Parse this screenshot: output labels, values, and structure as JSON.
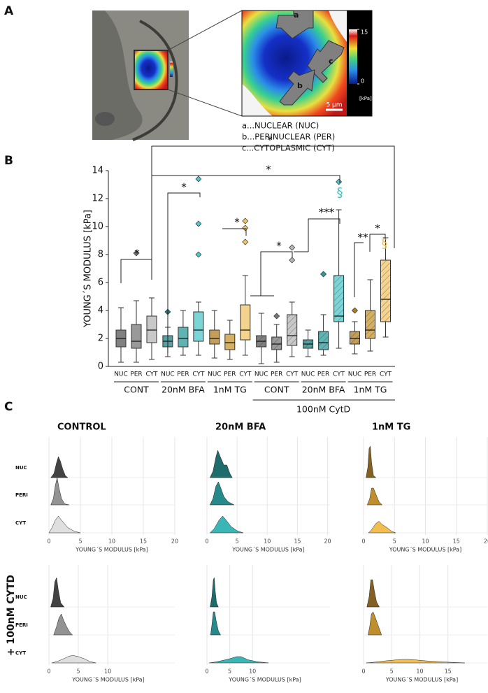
{
  "panel_labels": [
    "A",
    "B",
    "C"
  ],
  "panel_a": {
    "arrows": [
      "a",
      "b",
      "c"
    ],
    "colorbar": {
      "ticks": [
        15,
        0
      ],
      "unit": "[kPa]"
    },
    "scale_bar": "5 µm",
    "legend": [
      "a...NUCLEAR (NUC)",
      "b...PERINUCLEAR (PER)",
      "c...CYTOPLASMIC (CYT)"
    ]
  },
  "row_label": "+ 100nM CYTD",
  "chart_data": [
    {
      "type": "box",
      "ylabel": "YOUNG´S MODULUS [kPa]",
      "ylim": [
        0,
        14
      ],
      "yticks": [
        0,
        2,
        4,
        6,
        8,
        10,
        12,
        14
      ],
      "categories": [
        "NUC",
        "PER",
        "CYT",
        "NUC",
        "PER",
        "CYT",
        "NUC",
        "PER",
        "CYT",
        "NUC",
        "PER",
        "CYT",
        "NUC",
        "PER",
        "CYT",
        "NUC",
        "PER",
        "CYT"
      ],
      "groups": [
        "CONT",
        "20nM BFA",
        "1nM TG",
        "CONT",
        "20nM BFA",
        "1nM TG"
      ],
      "supergroup": "100nM CytD",
      "boxes": [
        {
          "min": 0.3,
          "q1": 1.4,
          "median": 2.0,
          "q3": 2.6,
          "max": 4.2,
          "outliers": [],
          "color": "#555555",
          "hatched": false
        },
        {
          "min": 0.3,
          "q1": 1.3,
          "median": 1.8,
          "q3": 3.0,
          "max": 4.7,
          "outliers": [
            8.1
          ],
          "color": "#777777",
          "hatched": false
        },
        {
          "min": 0.5,
          "q1": 1.7,
          "median": 2.6,
          "q3": 3.6,
          "max": 4.9,
          "outliers": [],
          "color": "#b5b5b5",
          "hatched": false
        },
        {
          "min": 0.7,
          "q1": 1.4,
          "median": 1.8,
          "q3": 2.2,
          "max": 2.8,
          "outliers": [
            3.9
          ],
          "color": "#1f7f80",
          "hatched": false
        },
        {
          "min": 0.8,
          "q1": 1.4,
          "median": 2.0,
          "q3": 2.8,
          "max": 4.0,
          "outliers": [],
          "color": "#2a9a9a",
          "hatched": false
        },
        {
          "min": 0.8,
          "q1": 1.8,
          "median": 2.6,
          "q3": 3.9,
          "max": 4.6,
          "outliers": [
            13.4,
            10.2,
            8.0
          ],
          "color": "#4fc6c7",
          "hatched": false
        },
        {
          "min": 0.6,
          "q1": 1.6,
          "median": 2.0,
          "q3": 2.6,
          "max": 4.0,
          "outliers": [],
          "color": "#b07d20",
          "hatched": false
        },
        {
          "min": 0.5,
          "q1": 1.2,
          "median": 1.7,
          "q3": 2.3,
          "max": 3.3,
          "outliers": [],
          "color": "#c8962e",
          "hatched": false
        },
        {
          "min": 0.8,
          "q1": 1.9,
          "median": 2.6,
          "q3": 4.4,
          "max": 6.5,
          "outliers": [
            10.4,
            9.9,
            8.9
          ],
          "color": "#f0c46a",
          "hatched": false
        },
        {
          "min": 0.2,
          "q1": 1.4,
          "median": 1.8,
          "q3": 2.2,
          "max": 3.8,
          "outliers": [],
          "color": "#555555",
          "hatched": true
        },
        {
          "min": 0.3,
          "q1": 1.2,
          "median": 1.6,
          "q3": 2.1,
          "max": 3.0,
          "outliers": [
            3.6
          ],
          "color": "#777777",
          "hatched": true
        },
        {
          "min": 0.7,
          "q1": 1.5,
          "median": 2.2,
          "q3": 3.7,
          "max": 4.6,
          "outliers": [
            8.5,
            7.6
          ],
          "color": "#b5b5b5",
          "hatched": true
        },
        {
          "min": 0.7,
          "q1": 1.3,
          "median": 1.6,
          "q3": 1.9,
          "max": 2.6,
          "outliers": [],
          "color": "#1f7f80",
          "hatched": true
        },
        {
          "min": 0.8,
          "q1": 1.2,
          "median": 1.7,
          "q3": 2.5,
          "max": 3.7,
          "outliers": [
            6.6
          ],
          "color": "#2a9a9a",
          "hatched": true
        },
        {
          "min": 1.3,
          "q1": 3.2,
          "median": 3.6,
          "q3": 6.5,
          "max": 11.2,
          "outliers": [
            13.2
          ],
          "color": "#4fc6c7",
          "hatched": true
        },
        {
          "min": 0.9,
          "q1": 1.6,
          "median": 2.0,
          "q3": 2.5,
          "max": 3.2,
          "outliers": [
            4.0
          ],
          "color": "#b07d20",
          "hatched": true
        },
        {
          "min": 1.1,
          "q1": 2.0,
          "median": 2.6,
          "q3": 4.0,
          "max": 6.2,
          "outliers": [],
          "color": "#c8962e",
          "hatched": true
        },
        {
          "min": 2.1,
          "q1": 3.2,
          "median": 4.8,
          "q3": 7.6,
          "max": 9.2,
          "outliers": [],
          "color": "#f0c46a",
          "hatched": true
        }
      ],
      "annotations": [
        {
          "text": "*"
        },
        {
          "text": "*"
        },
        {
          "text": "*"
        },
        {
          "text": "*"
        },
        {
          "text": "*"
        },
        {
          "text": "*"
        },
        {
          "text": "***"
        },
        {
          "text": "**"
        },
        {
          "text": "*"
        },
        {
          "text": "§",
          "color": "#3bbfc0"
        },
        {
          "text": "§",
          "color": "#e8c04a"
        }
      ]
    },
    {
      "type": "ridgeline",
      "title": "CONTROL",
      "xlabel": "YOUNG´S MODULUS [kPa]",
      "xlim": [
        0,
        20
      ],
      "xticks": [
        0,
        5,
        10,
        15,
        20
      ],
      "series": [
        {
          "name": "NUC",
          "color": "#333333",
          "x": [
            0.3,
            0.8,
            1.2,
            1.5,
            1.8,
            2.2,
            2.6,
            3.0
          ],
          "values": [
            0,
            0.2,
            0.7,
            1.0,
            0.8,
            0.4,
            0.1,
            0
          ]
        },
        {
          "name": "PERI",
          "color": "#8a8a8a",
          "x": [
            0.3,
            0.7,
            1.0,
            1.3,
            1.6,
            2.0,
            2.5,
            3.2
          ],
          "values": [
            0,
            0.3,
            0.9,
            1.3,
            0.8,
            0.3,
            0.05,
            0
          ]
        },
        {
          "name": "CYT",
          "color": "#dcdcdc",
          "x": [
            0,
            0.5,
            1.0,
            1.5,
            2.0,
            3.0,
            4.0,
            5.0
          ],
          "values": [
            0,
            0.25,
            0.6,
            0.8,
            0.6,
            0.25,
            0.08,
            0
          ]
        }
      ]
    },
    {
      "type": "ridgeline",
      "title": "20nM BFA",
      "xlabel": "YOUNG´S MODULUS [kPa]",
      "xlim": [
        0,
        20.4
      ],
      "xticks": [
        0,
        5,
        10,
        15,
        20
      ],
      "series": [
        {
          "color": "#0c5f5f",
          "x": [
            0.5,
            1.0,
            1.5,
            1.8,
            2.2,
            2.8,
            3.3,
            3.8,
            4.2
          ],
          "values": [
            0,
            0.3,
            1.0,
            1.3,
            1.0,
            0.6,
            0.6,
            0.2,
            0
          ]
        },
        {
          "color": "#138080",
          "x": [
            0.5,
            1.0,
            1.5,
            1.9,
            2.3,
            2.8,
            3.5,
            4.5
          ],
          "values": [
            0,
            0.3,
            0.9,
            1.1,
            0.8,
            0.4,
            0.15,
            0
          ]
        },
        {
          "color": "#2ab0b0",
          "x": [
            0.5,
            1.2,
            2.0,
            2.6,
            3.2,
            4.0,
            5.0,
            6.0
          ],
          "values": [
            0,
            0.2,
            0.6,
            0.8,
            0.6,
            0.3,
            0.1,
            0
          ]
        }
      ]
    },
    {
      "type": "ridgeline",
      "title": "1nM TG",
      "xlabel": "YOUNG´S MODULUS [kPa]",
      "xlim": [
        0,
        20
      ],
      "xticks": [
        0,
        5,
        10,
        15,
        20
      ],
      "series": [
        {
          "color": "#7a5410",
          "x": [
            0.4,
            0.7,
            0.9,
            1.1,
            1.3,
            1.6,
            2.0
          ],
          "values": [
            0,
            0.5,
            1.4,
            1.5,
            0.7,
            0.1,
            0
          ]
        },
        {
          "color": "#b8861a",
          "x": [
            0.6,
            1.0,
            1.3,
            1.6,
            2.0,
            2.5,
            3.0
          ],
          "values": [
            0,
            0.3,
            0.8,
            0.8,
            0.5,
            0.15,
            0
          ]
        },
        {
          "color": "#f0b840",
          "x": [
            0.8,
            1.3,
            2.0,
            2.5,
            3.0,
            3.8,
            4.5,
            5.2
          ],
          "values": [
            0,
            0.15,
            0.45,
            0.55,
            0.4,
            0.25,
            0.08,
            0
          ]
        }
      ]
    },
    {
      "type": "ridgeline",
      "xlabel": "YOUNG´S MODULUS [kPa]",
      "xlim": [
        0,
        21.4
      ],
      "xticks": [
        0,
        5,
        10
      ],
      "series": [
        {
          "name": "NUC",
          "color": "#333333",
          "x": [
            0.3,
            0.7,
            1.0,
            1.3,
            1.6,
            2.0,
            2.6
          ],
          "values": [
            0,
            0.4,
            1.2,
            1.4,
            0.8,
            0.2,
            0
          ]
        },
        {
          "name": "PERI",
          "color": "#8a8a8a",
          "x": [
            0.8,
            1.3,
            1.7,
            2.1,
            2.5,
            3.0,
            3.5,
            4.0
          ],
          "values": [
            0,
            0.4,
            0.8,
            1.0,
            0.7,
            0.4,
            0.15,
            0
          ]
        },
        {
          "name": "CYT",
          "color": "#dcdcdc",
          "x": [
            0.5,
            1.5,
            2.5,
            3.5,
            4.2,
            5.0,
            6.0,
            7.0,
            8.0
          ],
          "values": [
            0,
            0.08,
            0.2,
            0.33,
            0.35,
            0.3,
            0.2,
            0.06,
            0
          ]
        }
      ]
    },
    {
      "type": "ridgeline",
      "xlabel": "YOUNG´S MODULUS [kPa]",
      "xlim": [
        0,
        27
      ],
      "xticks": [
        0,
        5,
        10
      ],
      "series": [
        {
          "color": "#0c5f5f",
          "x": [
            0.7,
            1.1,
            1.4,
            1.6,
            1.8,
            2.1,
            2.5
          ],
          "values": [
            0,
            0.5,
            1.3,
            1.4,
            0.8,
            0.2,
            0
          ]
        },
        {
          "color": "#138080",
          "x": [
            0.8,
            1.1,
            1.4,
            1.7,
            2.0,
            2.5,
            3.0
          ],
          "values": [
            0,
            0.5,
            1.1,
            1.1,
            0.7,
            0.2,
            0
          ]
        },
        {
          "color": "#2ab0b0",
          "x": [
            0.5,
            2,
            3.5,
            5,
            6.5,
            7.5,
            9,
            11,
            13.5
          ],
          "values": [
            0,
            0.05,
            0.12,
            0.2,
            0.3,
            0.3,
            0.15,
            0.06,
            0
          ]
        }
      ]
    },
    {
      "type": "ridgeline",
      "xlabel": "YOUNG´S MODULUS [kPa]",
      "xlim": [
        0,
        22
      ],
      "xticks": [
        0,
        5,
        10,
        15
      ],
      "series": [
        {
          "color": "#7a5410",
          "x": [
            0.6,
            1.0,
            1.3,
            1.6,
            1.9,
            2.3,
            2.8
          ],
          "values": [
            0,
            0.5,
            1.3,
            1.3,
            0.8,
            0.25,
            0
          ]
        },
        {
          "color": "#b8861a",
          "x": [
            0.8,
            1.1,
            1.4,
            1.7,
            2.0,
            2.4,
            2.8,
            3.2
          ],
          "values": [
            0,
            0.4,
            1.0,
            1.1,
            0.9,
            0.6,
            0.3,
            0
          ]
        },
        {
          "color": "#f0b840",
          "x": [
            0.5,
            2,
            4,
            6,
            7.5,
            9,
            11,
            14,
            18
          ],
          "values": [
            0,
            0.04,
            0.1,
            0.15,
            0.17,
            0.15,
            0.1,
            0.05,
            0
          ]
        }
      ]
    }
  ]
}
